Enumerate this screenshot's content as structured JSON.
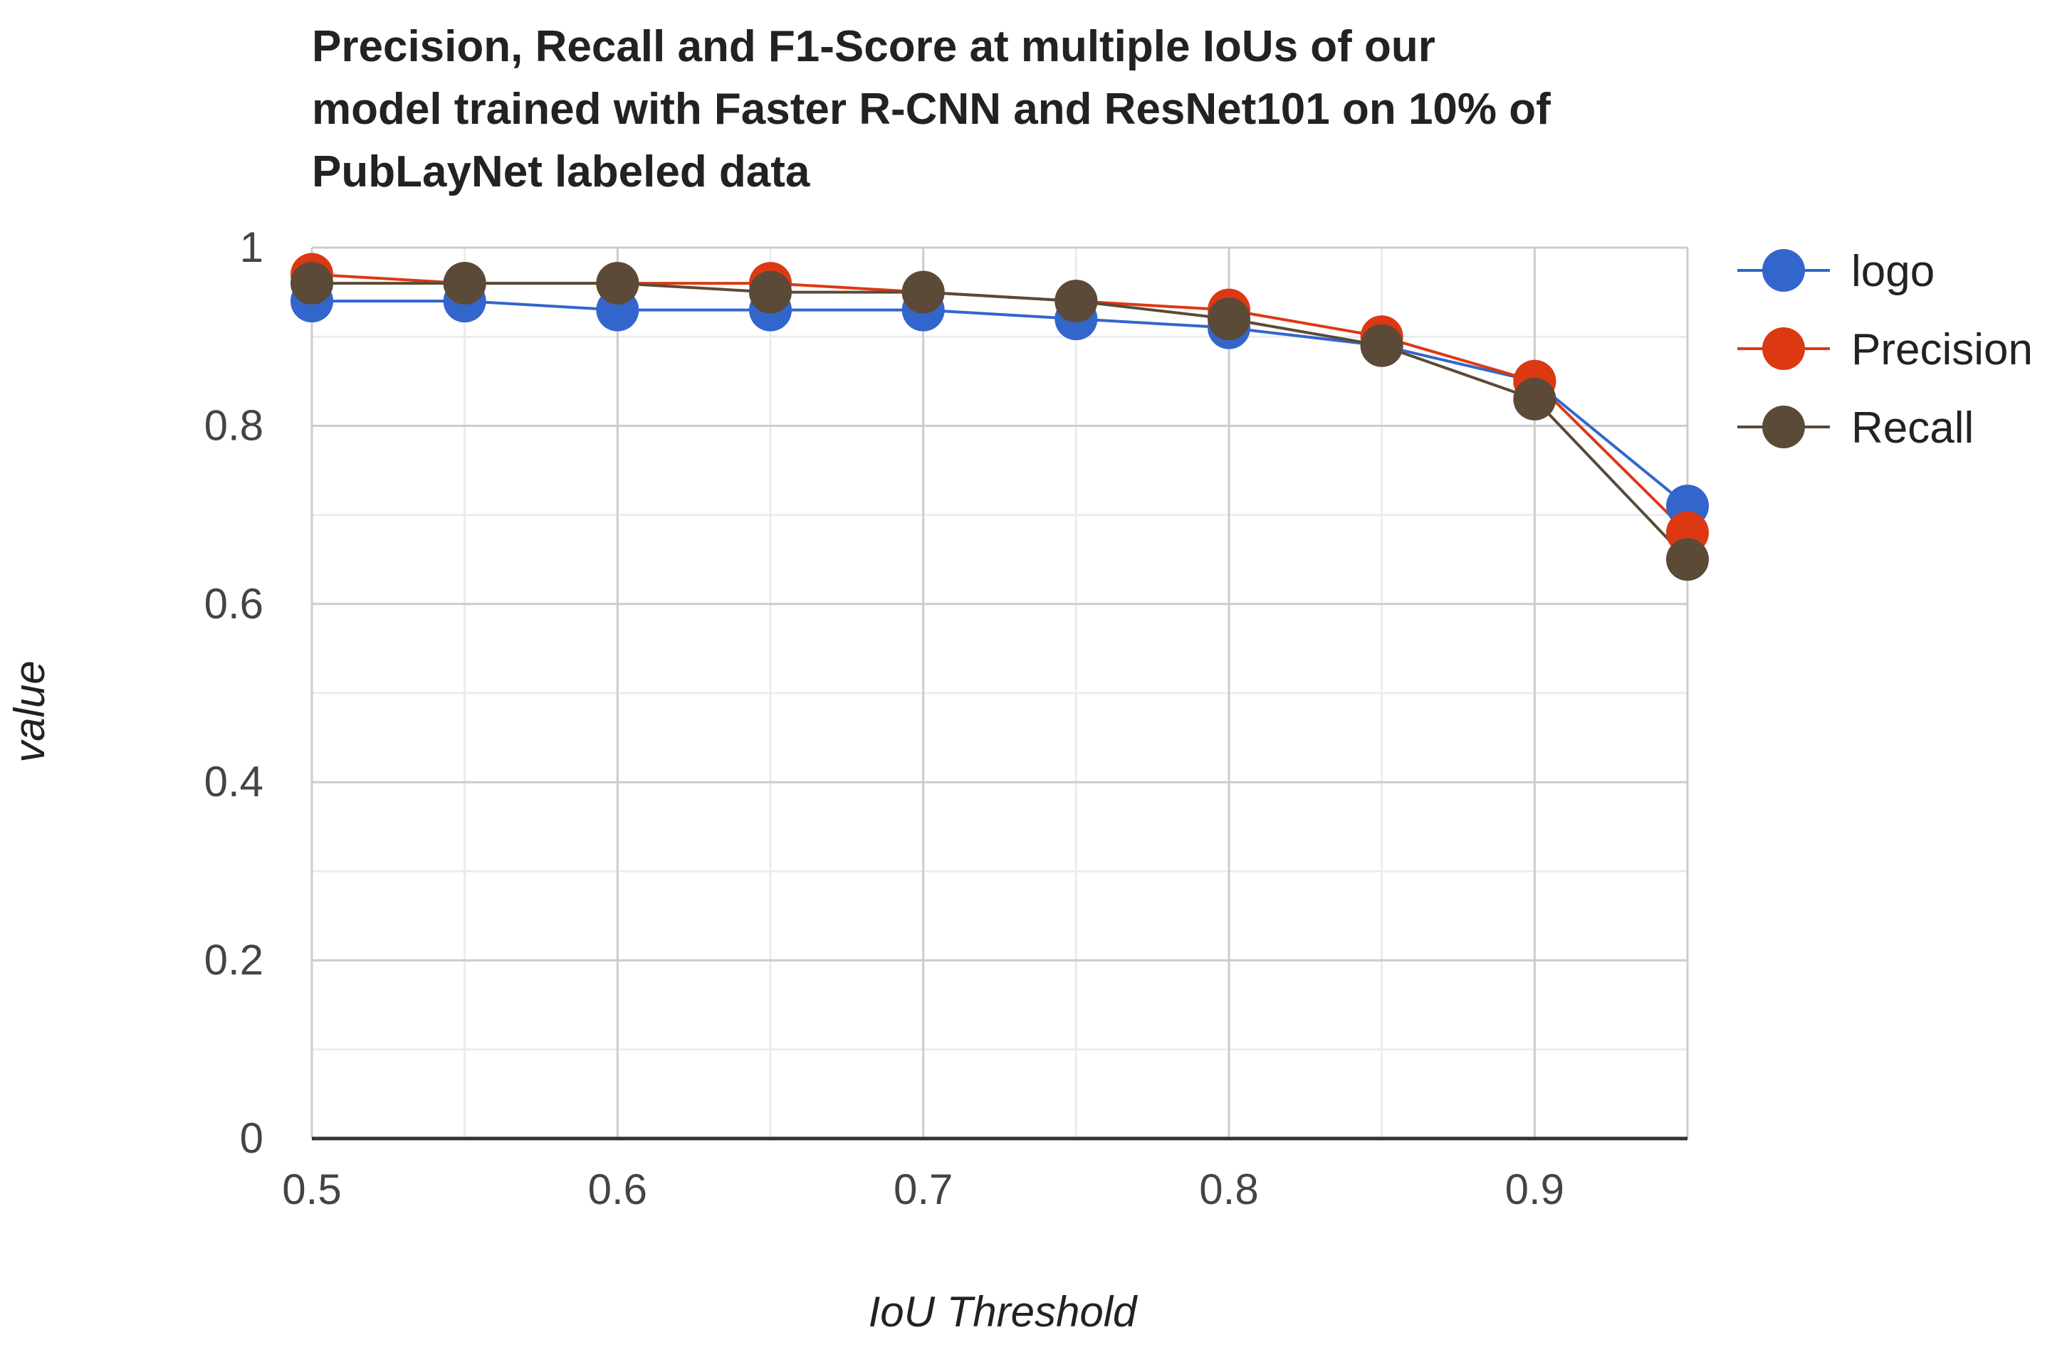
{
  "chart_data": {
    "type": "line",
    "title_lines": [
      "Precision, Recall and F1-Score at multiple IoUs of our",
      "model trained with Faster R-CNN and ResNet101 on 10% of",
      "PubLayNet labeled data"
    ],
    "xlabel": "IoU Threshold",
    "ylabel": "value",
    "x": [
      0.5,
      0.55,
      0.6,
      0.65,
      0.7,
      0.75,
      0.8,
      0.85,
      0.9,
      0.95
    ],
    "xlim": [
      0.5,
      0.95
    ],
    "ylim": [
      0,
      1
    ],
    "x_ticks": [
      {
        "value": 0.5,
        "label": "0.5"
      },
      {
        "value": 0.6,
        "label": "0.6"
      },
      {
        "value": 0.7,
        "label": "0.7"
      },
      {
        "value": 0.8,
        "label": "0.8"
      },
      {
        "value": 0.9,
        "label": "0.9"
      }
    ],
    "y_ticks": [
      {
        "value": 0,
        "label": "0"
      },
      {
        "value": 0.2,
        "label": "0.2"
      },
      {
        "value": 0.4,
        "label": "0.4"
      },
      {
        "value": 0.6,
        "label": "0.6"
      },
      {
        "value": 0.8,
        "label": "0.8"
      },
      {
        "value": 1,
        "label": "1"
      }
    ],
    "grid": true,
    "legend_position": "right",
    "series": [
      {
        "name": "logo",
        "color": "#3366cc",
        "values": [
          0.94,
          0.94,
          0.93,
          0.93,
          0.93,
          0.92,
          0.91,
          0.89,
          0.85,
          0.71
        ]
      },
      {
        "name": "Precision",
        "color": "#dc3912",
        "values": [
          0.97,
          0.96,
          0.96,
          0.96,
          0.95,
          0.94,
          0.93,
          0.9,
          0.85,
          0.68
        ]
      },
      {
        "name": "Recall",
        "color": "#5b4a37",
        "values": [
          0.96,
          0.96,
          0.96,
          0.95,
          0.95,
          0.94,
          0.92,
          0.89,
          0.83,
          0.65
        ]
      }
    ]
  }
}
